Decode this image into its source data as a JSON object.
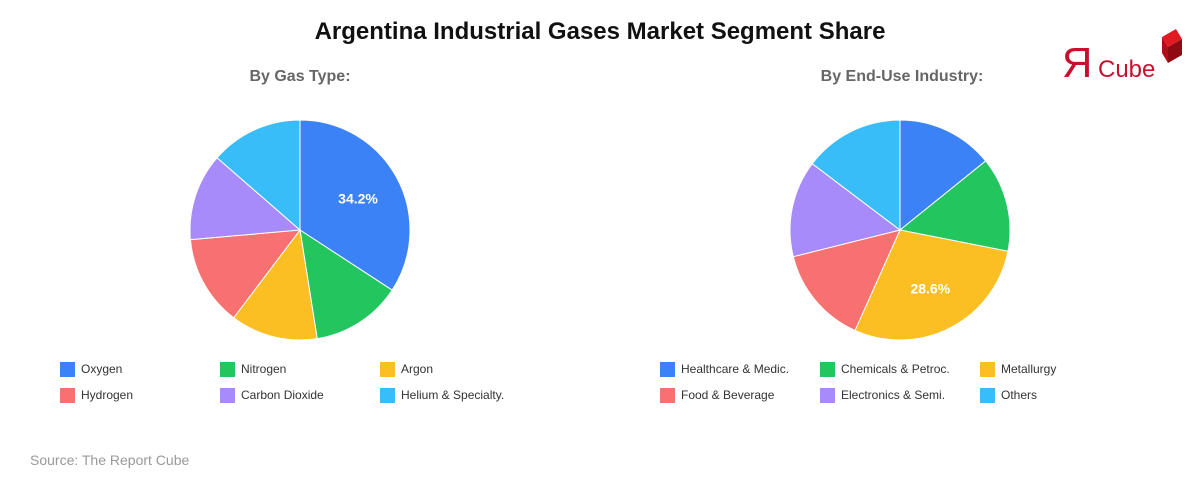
{
  "title": "Argentina Industrial Gases Market Segment Share",
  "source": "Source: The Report Cube",
  "logo": {
    "r": "Я",
    "text": "Cube",
    "color": "#c8102e"
  },
  "chart_data": [
    {
      "type": "pie",
      "title": "By Gas Type:",
      "categories": [
        "Oxygen",
        "Nitrogen",
        "Argon",
        "Hydrogen",
        "Carbon Dioxide",
        "Helium & Specialty."
      ],
      "values": [
        34.2,
        13.3,
        12.8,
        13.3,
        12.8,
        13.6
      ],
      "colors": [
        "#3b82f6",
        "#22c55e",
        "#fbbf24",
        "#f87171",
        "#a78bfa",
        "#38bdf8"
      ],
      "data_labels": [
        {
          "category": "Oxygen",
          "label": "34.2%"
        }
      ],
      "legend_position": "bottom"
    },
    {
      "type": "pie",
      "title": "By End-Use Industry:",
      "categories": [
        "Healthcare & Medic.",
        "Chemicals & Petroc.",
        "Metallurgy",
        "Food & Beverage",
        "Electronics & Semi.",
        "Others"
      ],
      "values": [
        14.2,
        13.9,
        28.6,
        14.4,
        14.2,
        14.7
      ],
      "colors": [
        "#3b82f6",
        "#22c55e",
        "#fbbf24",
        "#f87171",
        "#a78bfa",
        "#38bdf8"
      ],
      "data_labels": [
        {
          "category": "Metallurgy",
          "label": "28.6%"
        }
      ],
      "legend_position": "bottom"
    }
  ]
}
